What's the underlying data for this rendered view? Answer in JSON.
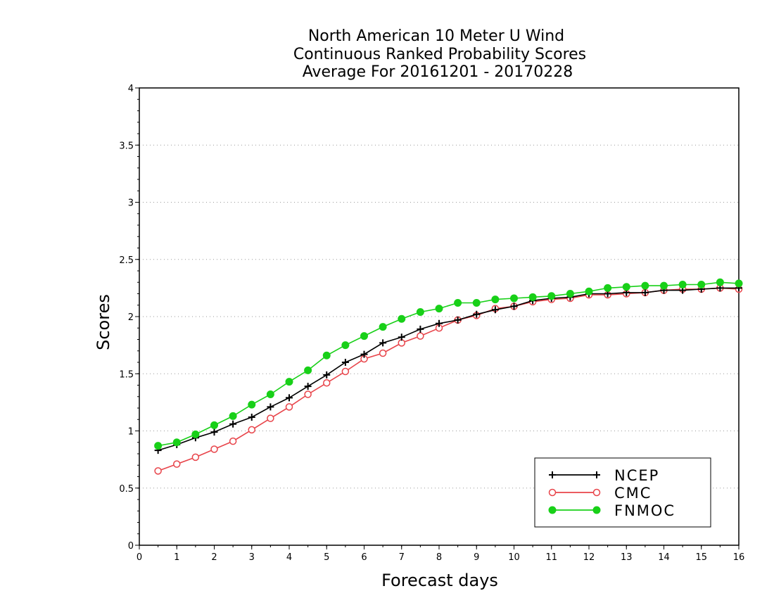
{
  "chart_data": {
    "type": "line",
    "title_lines": [
      "North American 10 Meter U Wind",
      "Continuous Ranked Probability Scores",
      "Average For 20161201 - 20170228"
    ],
    "xlabel": "Forecast days",
    "ylabel": "Scores",
    "xlim": [
      0,
      16
    ],
    "ylim": [
      0,
      4
    ],
    "xticks": [
      "0",
      "1",
      "2",
      "3",
      "4",
      "5",
      "6",
      "7",
      "8",
      "9",
      "10",
      "11",
      "12",
      "13",
      "14",
      "15",
      "16"
    ],
    "yticks": [
      "0",
      "0.5",
      "1",
      "1.5",
      "2",
      "2.5",
      "3",
      "3.5",
      "4"
    ],
    "grid": "horizontal dotted",
    "legend_position": "bottom-right",
    "x": [
      0.5,
      1,
      1.5,
      2,
      2.5,
      3,
      3.5,
      4,
      4.5,
      5,
      5.5,
      6,
      6.5,
      7,
      7.5,
      8,
      8.5,
      9,
      9.5,
      10,
      10.5,
      11,
      11.5,
      12,
      12.5,
      13,
      13.5,
      14,
      14.5,
      15,
      15.5,
      16
    ],
    "series": [
      {
        "name": "NCEP",
        "color": "#000000",
        "marker": "plus",
        "values": [
          0.83,
          0.88,
          0.94,
          0.99,
          1.06,
          1.12,
          1.21,
          1.29,
          1.39,
          1.49,
          1.6,
          1.67,
          1.77,
          1.82,
          1.89,
          1.94,
          1.97,
          2.02,
          2.06,
          2.09,
          2.14,
          2.16,
          2.17,
          2.2,
          2.2,
          2.21,
          2.21,
          2.23,
          2.23,
          2.24,
          2.25,
          2.25
        ]
      },
      {
        "name": "CMC",
        "color": "#e8444a",
        "marker": "open-circle",
        "values": [
          0.65,
          0.71,
          0.77,
          0.84,
          0.91,
          1.01,
          1.11,
          1.21,
          1.32,
          1.42,
          1.52,
          1.63,
          1.68,
          1.77,
          1.83,
          1.9,
          1.97,
          2.01,
          2.07,
          2.09,
          2.13,
          2.15,
          2.16,
          2.19,
          2.19,
          2.2,
          2.21,
          2.23,
          2.24,
          2.24,
          2.25,
          2.24
        ]
      },
      {
        "name": "FNMOC",
        "color": "#18d018",
        "marker": "filled-circle",
        "values": [
          0.87,
          0.9,
          0.97,
          1.05,
          1.13,
          1.23,
          1.32,
          1.43,
          1.53,
          1.66,
          1.75,
          1.83,
          1.91,
          1.98,
          2.04,
          2.07,
          2.12,
          2.12,
          2.15,
          2.16,
          2.17,
          2.18,
          2.2,
          2.22,
          2.25,
          2.26,
          2.27,
          2.27,
          2.28,
          2.28,
          2.3,
          2.29
        ]
      }
    ]
  }
}
